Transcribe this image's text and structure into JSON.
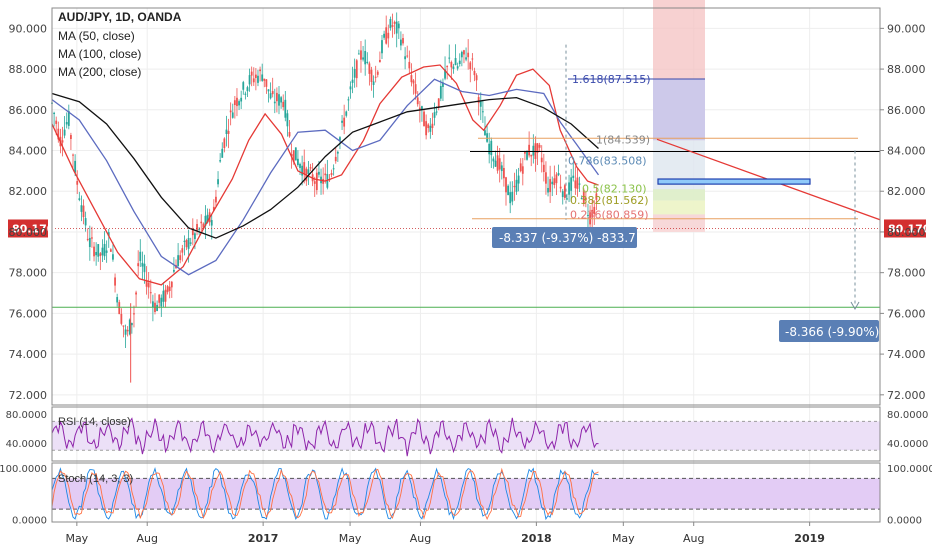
{
  "chart_data": {
    "type": "line",
    "title": "AUD/JPY, 1D, OANDA",
    "indicators": [
      "MA (50, close)",
      "MA (100, close)",
      "MA (200, close)"
    ],
    "main": {
      "ylim": [
        71.5,
        91.0
      ],
      "yticks": [
        "72.000",
        "74.000",
        "76.000",
        "78.000",
        "80.000",
        "82.000",
        "84.000",
        "86.000",
        "88.000",
        "90.000"
      ],
      "ytick_values": [
        72,
        74,
        76,
        78,
        80,
        82,
        84,
        86,
        88,
        90
      ],
      "current_price": 80.17,
      "current_price_label": "80.170",
      "series": [
        {
          "name": "MA (50, close)",
          "color": "#e53935",
          "x": [
            0.0,
            0.04,
            0.08,
            0.12,
            0.16,
            0.2,
            0.24,
            0.28,
            0.33,
            0.36,
            0.39,
            0.42,
            0.45,
            0.48,
            0.5,
            0.53,
            0.57,
            0.6,
            0.64,
            0.68,
            0.71,
            0.74,
            0.77,
            0.79,
            0.82,
            0.85,
            0.88,
            0.91,
            0.93,
            0.96,
            0.98,
            1.0
          ],
          "y": [
            85.3,
            83.0,
            81.0,
            79.0,
            77.7,
            77.4,
            78.3,
            80.3,
            82.6,
            84.5,
            85.8,
            84.8,
            83.0,
            82.6,
            82.5,
            82.8,
            84.5,
            86.3,
            87.6,
            88.1,
            88.2,
            87.3,
            85.5,
            85.0,
            86.2,
            87.7,
            88.0,
            87.2,
            85.0,
            83.2,
            82.5,
            82.3
          ]
        },
        {
          "name": "MA (100, close)",
          "color": "#5c6bc0",
          "x": [
            0.0,
            0.05,
            0.1,
            0.15,
            0.2,
            0.25,
            0.3,
            0.35,
            0.4,
            0.45,
            0.5,
            0.55,
            0.6,
            0.65,
            0.7,
            0.75,
            0.8,
            0.85,
            0.9,
            0.93,
            0.96,
            1.0
          ],
          "y": [
            86.5,
            85.5,
            83.5,
            81.0,
            78.8,
            77.9,
            78.6,
            80.6,
            82.9,
            84.9,
            85.0,
            84.0,
            84.5,
            86.2,
            87.5,
            86.9,
            86.7,
            87.0,
            86.8,
            85.4,
            84.3,
            82.8
          ]
        },
        {
          "name": "MA (200, close)",
          "color": "#111111",
          "x": [
            0.0,
            0.05,
            0.1,
            0.15,
            0.2,
            0.25,
            0.3,
            0.35,
            0.4,
            0.45,
            0.5,
            0.55,
            0.6,
            0.65,
            0.7,
            0.75,
            0.8,
            0.85,
            0.9,
            0.95,
            1.0
          ],
          "y": [
            86.8,
            86.4,
            85.3,
            83.6,
            81.7,
            80.2,
            79.7,
            80.3,
            81.1,
            82.2,
            83.7,
            84.9,
            85.4,
            85.9,
            86.1,
            86.3,
            86.5,
            86.6,
            86.1,
            85.3,
            84.1
          ]
        }
      ],
      "horizontal_levels": [
        {
          "name": "support",
          "value": 76.3,
          "color": "#4caf50"
        },
        {
          "name": "resistance",
          "value": 83.95,
          "color": "#000000"
        },
        {
          "name": "fib-top",
          "value": 84.6,
          "color": "#e8a060"
        },
        {
          "name": "fib-base",
          "value": 80.65,
          "color": "#e8a060"
        }
      ],
      "fib_labels": [
        "1.618(87.515)",
        "1(84.539)",
        "0.786(83.508)",
        "0.5(82.130)",
        "0.382(81.562)",
        "0.236(80.859)"
      ],
      "fib_values": [
        87.515,
        84.539,
        83.508,
        82.13,
        81.562,
        80.859
      ],
      "annotations": [
        "-8.337 (-9.37%) -833.7",
        "-8.366 (-9.90%)"
      ]
    },
    "x_axis": {
      "labels": [
        "May",
        "Aug",
        "2017",
        "May",
        "Aug",
        "2018",
        "May",
        "Aug",
        "2019"
      ]
    },
    "rsi": {
      "label": "RSI (14, close)",
      "ylim": [
        15,
        90
      ],
      "yticks": [
        "80.0000",
        "40.0000"
      ],
      "ytick_values": [
        80,
        40
      ]
    },
    "stoch": {
      "label": "Stoch (14, 3, 3)",
      "ylim": [
        -5,
        110
      ],
      "yticks": [
        "100.0000",
        "0.0000"
      ],
      "ytick_values": [
        100,
        0
      ]
    }
  }
}
